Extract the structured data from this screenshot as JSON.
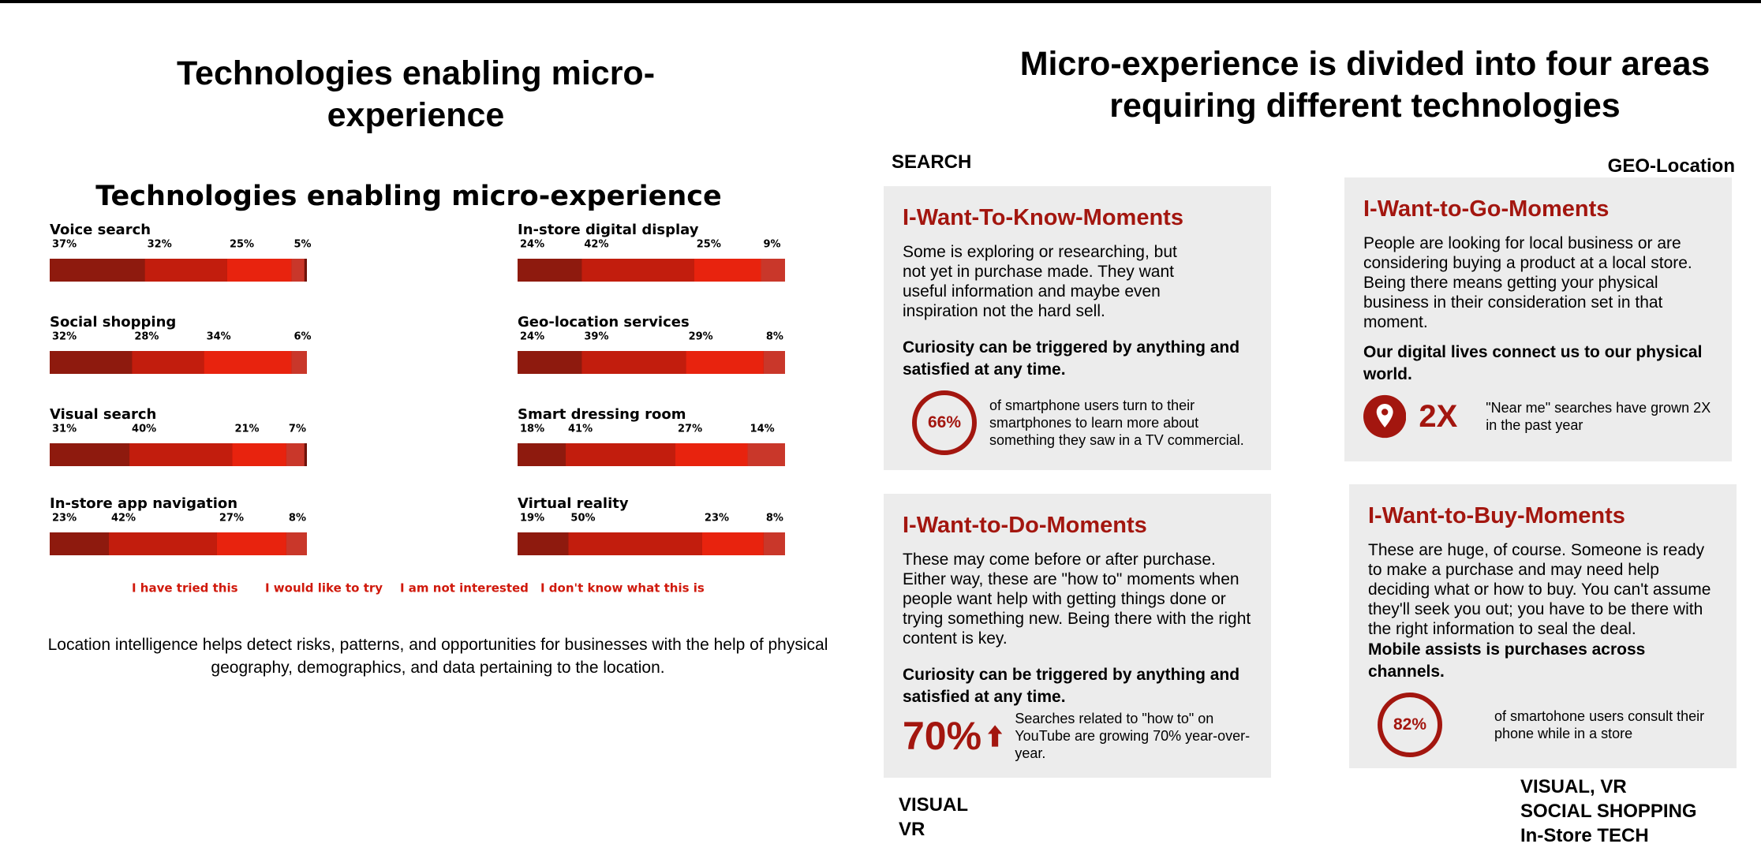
{
  "chart_data": {
    "type": "stacked-bar",
    "title": "Technologies enabling micro-experience",
    "categories": [
      "Voice search",
      "Social shopping",
      "Visual search",
      "In-store app navigation",
      "In-store digital display",
      "Geo-location services",
      "Smart dressing room",
      "Virtual reality"
    ],
    "series": [
      {
        "name": "I have tried this",
        "color": "#8e1a0e",
        "values": [
          37,
          32,
          31,
          23,
          24,
          24,
          18,
          19
        ],
        "value_labels": [
          "37%",
          "32%",
          "31%",
          "23%",
          "24%",
          "24%",
          "18%",
          "19%"
        ]
      },
      {
        "name": "I would like to try",
        "color": "#c21d0d",
        "values": [
          32,
          28,
          40,
          42,
          42,
          39,
          41,
          50
        ],
        "value_labels": [
          "32%",
          "28%",
          "40%",
          "42%",
          "42%",
          "39%",
          "41%",
          "50%"
        ]
      },
      {
        "name": "I am not interested",
        "color": "#e8230e",
        "values": [
          25,
          34,
          21,
          27,
          25,
          29,
          27,
          23
        ],
        "value_labels": [
          "25%",
          "34%",
          "21%",
          "27%",
          "25%",
          "29%",
          "27%",
          "23%"
        ]
      },
      {
        "name": "I don't know what this is",
        "color": "#c9372a",
        "values": [
          5,
          6,
          7,
          8,
          9,
          8,
          14,
          8
        ],
        "value_labels": [
          "5%",
          "6%",
          "7%",
          "8%",
          "9%",
          "8%",
          "14%",
          "8%"
        ]
      }
    ],
    "xlim": [
      0,
      100
    ]
  },
  "slide": {
    "left_title": "Technologies enabling micro-experience",
    "caption": "Location intelligence helps detect risks, patterns, and opportunities for businesses with the help of physical geography, demographics, and data pertaining to the location.",
    "right_title": "Micro-experience is divided into four areas requiring different technologies",
    "labels": [
      "SEARCH",
      "GEO-Location",
      "VISUAL",
      "VR",
      "VISUAL, VR",
      "SOCIAL SHOPPING",
      "In-Store TECH"
    ],
    "cards": [
      {
        "title": "I-Want-To-Know-Moments",
        "body": "Some is exploring or researching, but not yet in purchase made. They want useful information and maybe even inspiration not the hard sell.",
        "bold": "Curiosity can be triggered by anything and satisfied at any time.",
        "stat": "66%",
        "stat_text": "of smartphone users turn to their smartphones to learn more about something they saw in a TV commercial."
      },
      {
        "title": "I-Want-to-Go-Moments",
        "body": "People are looking for local business or are considering buying a product at a local store.  Being there means getting your physical business in their consideration set in that moment.",
        "bold": "Our digital lives connect us to our physical world.",
        "stat": "2X",
        "stat_text": "\"Near me\" searches have grown 2X in the past year"
      },
      {
        "title": "I-Want-to-Do-Moments",
        "body": "These may come before or after purchase. Either way, these are \"how to\" moments when people want help with getting things done or trying something new. Being there with the right content is key.",
        "bold": "Curiosity can be triggered by anything and satisfied at any time.",
        "stat": "70%",
        "stat_text": "Searches related to \"how to\" on YouTube are growing 70% year-over-year."
      },
      {
        "title": "I-Want-to-Buy-Moments",
        "body": "These are huge, of course. Someone is ready to make a purchase and may need help deciding what or how to buy. You can't assume they'll seek you out; you have to be there with the right information to seal the deal.",
        "bold": "Mobile assists is purchases across channels.",
        "stat": "82%",
        "stat_text": "of smartohone users consult their phone while in a store"
      }
    ]
  }
}
